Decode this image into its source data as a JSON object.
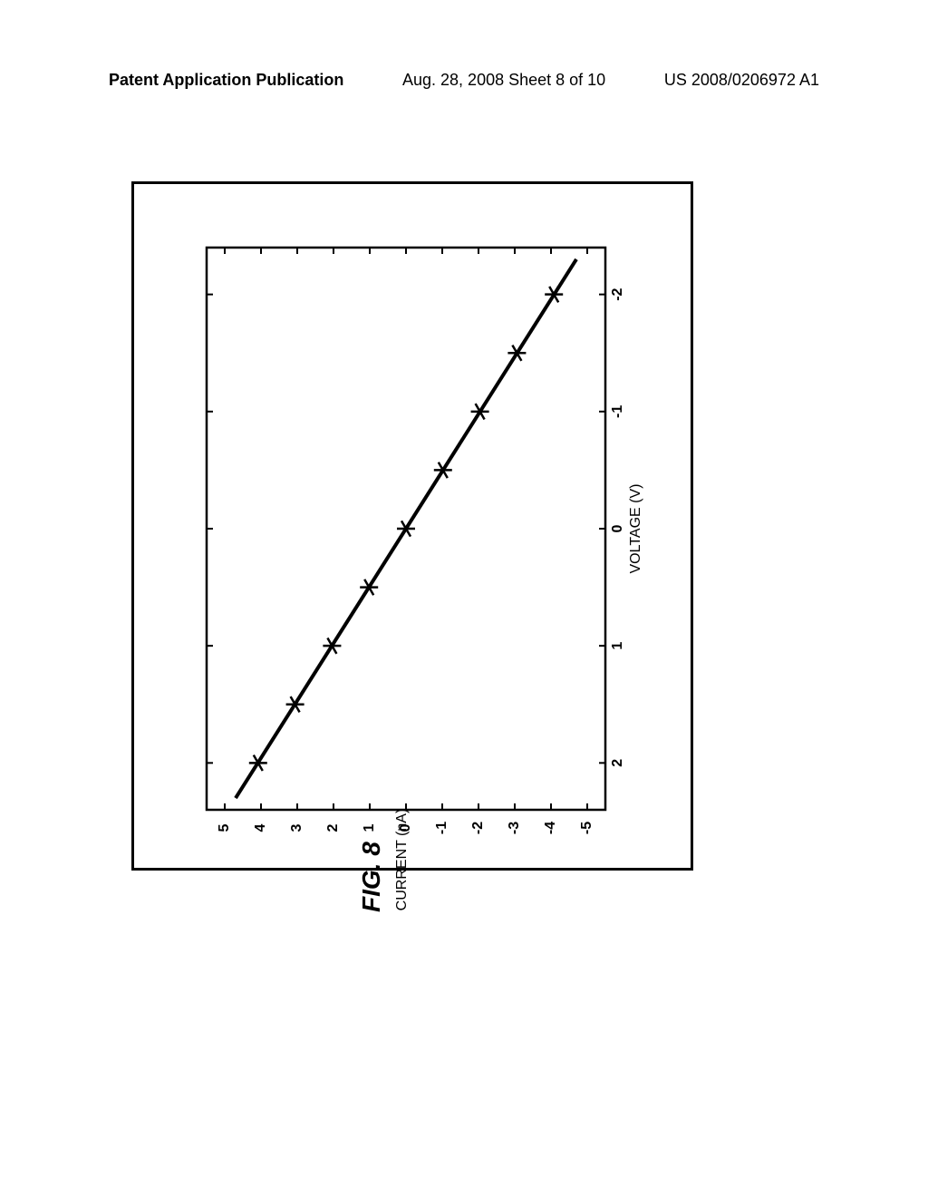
{
  "header": {
    "left": "Patent Application Publication",
    "center": "Aug. 28, 2008  Sheet 8 of 10",
    "right": "US 2008/0206972 A1"
  },
  "figure_caption": "FIG. 8",
  "chart": {
    "type": "scatter_line",
    "xlabel": "VOLTAGE (V)",
    "ylabel": "CURRENT (nA)",
    "xlim": [
      -2.4,
      2.4
    ],
    "ylim": [
      -5.5,
      5.5
    ],
    "xticks": [
      -2,
      -1,
      0,
      1,
      2
    ],
    "yticks": [
      -5,
      -4,
      -3,
      -2,
      -1,
      0,
      1,
      2,
      3,
      4,
      5
    ],
    "label_fontsize": 16,
    "tick_fontsize": 16,
    "line_color": "#000000",
    "line_width": 4,
    "marker_color": "#000000",
    "marker_size": 10,
    "background_color": "#ffffff",
    "line": [
      {
        "x": -2.3,
        "y": -4.7
      },
      {
        "x": 2.3,
        "y": 4.7
      }
    ],
    "points": [
      {
        "x": -2.0,
        "y": -4.08
      },
      {
        "x": -1.5,
        "y": -3.06
      },
      {
        "x": -1.0,
        "y": -2.04
      },
      {
        "x": -0.5,
        "y": -1.02
      },
      {
        "x": 0.0,
        "y": 0.0
      },
      {
        "x": 0.5,
        "y": 1.02
      },
      {
        "x": 1.0,
        "y": 2.04
      },
      {
        "x": 1.5,
        "y": 3.06
      },
      {
        "x": 2.0,
        "y": 4.08
      }
    ]
  }
}
